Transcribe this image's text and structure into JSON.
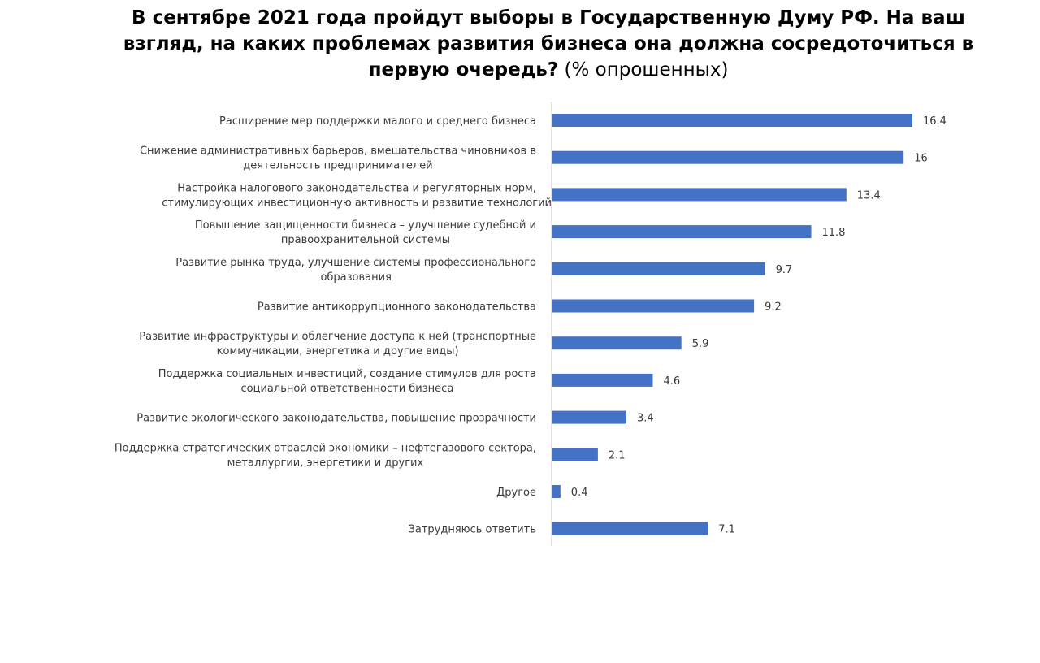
{
  "title": {
    "bold_part": "В сентябре 2021 года пройдут выборы в Государственную Думу РФ. На ваш взгляд, на каких проблемах развития бизнеса она должна сосредоточиться в первую очередь?",
    "normal_part": "(% опрошенных)"
  },
  "colors": {
    "bar": "#4472C4",
    "axis": "#d9d9d9",
    "text": "#3a3a3a"
  },
  "chart_data": {
    "type": "bar",
    "orientation": "horizontal",
    "title": "В сентябре 2021 года пройдут выборы в Государственную Думу РФ. На ваш взгляд, на каких проблемах развития бизнеса она должна сосредоточиться в первую очередь? (% опрошенных)",
    "xlabel": "",
    "ylabel": "",
    "xlim": [
      0,
      16.4
    ],
    "grid": false,
    "legend": "none",
    "categories": [
      [
        "Расширение мер поддержки малого и среднего бизнеса"
      ],
      [
        "Снижение административных барьеров, вмешательства чиновников в",
        "деятельность предпринимателей"
      ],
      [
        "Настройка налогового законодательства и регуляторных норм,",
        "стимулирующих инвестиционную активность и развитие технологий"
      ],
      [
        "Повышение защищенности бизнеса – улучшение судебной и",
        "правоохранительной системы"
      ],
      [
        "Развитие рынка труда, улучшение системы профессионального",
        "образования"
      ],
      [
        "Развитие антикоррупционного законодательства"
      ],
      [
        "Развитие инфраструктуры и облегчение доступа к ней (транспортные",
        "коммуникации, энергетика и другие виды)"
      ],
      [
        "Поддержка социальных инвестиций, создание стимулов для роста",
        "социальной ответственности бизнеса"
      ],
      [
        "Развитие экологического законодательства, повышение прозрачности"
      ],
      [
        "Поддержка стратегических отраслей экономики – нефтегазового сектора,",
        "металлургии, энергетики и других"
      ],
      [
        "Другое"
      ],
      [
        "Затрудняюсь ответить"
      ]
    ],
    "values": [
      16.4,
      16,
      13.4,
      11.8,
      9.7,
      9.2,
      5.9,
      4.6,
      3.4,
      2.1,
      0.4,
      7.1
    ],
    "value_labels": [
      "16.4",
      "16",
      "13.4",
      "11.8",
      "9.7",
      "9.2",
      "5.9",
      "4.6",
      "3.4",
      "2.1",
      "0.4",
      "7.1"
    ]
  }
}
